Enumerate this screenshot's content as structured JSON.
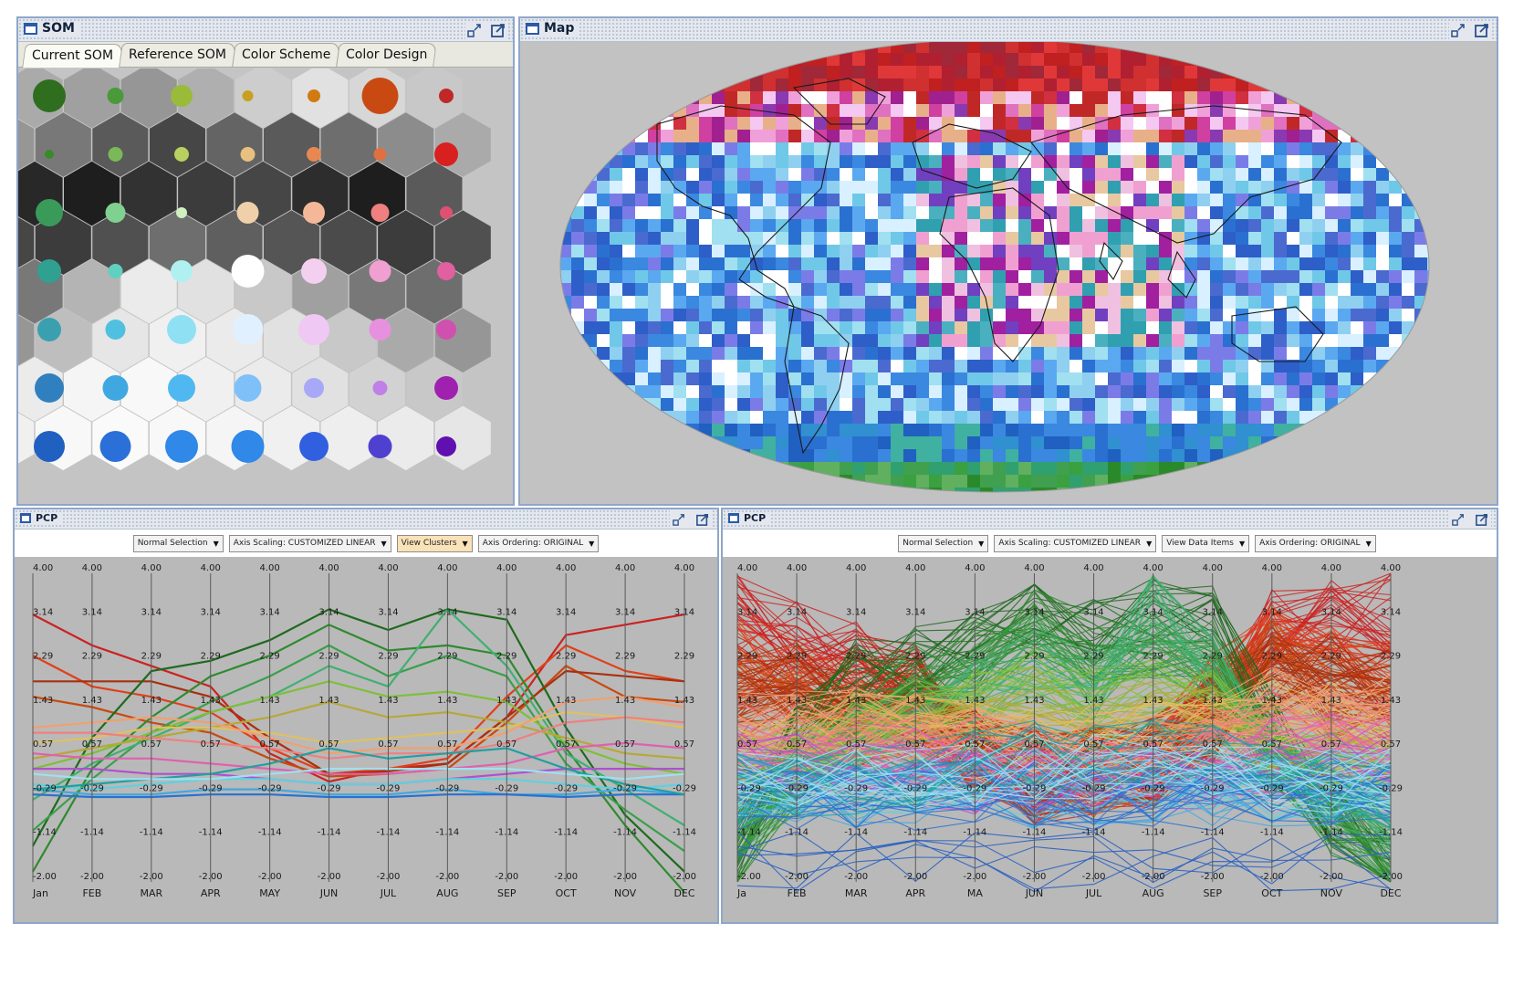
{
  "som_panel": {
    "title": "SOM",
    "tabs": [
      "Current SOM",
      "Reference SOM",
      "Color Scheme",
      "Color Design"
    ],
    "active_tab": "Current SOM"
  },
  "map_panel": {
    "title": "Map"
  },
  "pcp_left": {
    "title": "PCP",
    "controls": {
      "selection": "Normal Selection",
      "scaling": "Axis Scaling: CUSTOMIZED LINEAR",
      "view": "View Clusters",
      "ordering": "Axis Ordering: ORIGINAL"
    }
  },
  "pcp_right": {
    "title": "PCP",
    "controls": {
      "selection": "Normal Selection",
      "scaling": "Axis Scaling: CUSTOMIZED LINEAR",
      "view": "View Data Items",
      "ordering": "Axis Ordering: ORIGINAL"
    }
  },
  "pcp_axes": {
    "months_left": [
      "Jan",
      "FEB",
      "MAR",
      "APR",
      "MAY",
      "JUN",
      "JUL",
      "AUG",
      "SEP",
      "OCT",
      "NOV",
      "DEC"
    ],
    "months_right": [
      "Ja",
      "FEB",
      "MAR",
      "APR",
      "MA",
      "JUN",
      "JUL",
      "AUG",
      "SEP",
      "OCT",
      "NOV",
      "DEC"
    ],
    "ticks": [
      "4.00",
      "3.14",
      "2.29",
      "1.43",
      "0.57",
      "-0.29",
      "-1.14",
      "-2.00"
    ],
    "tick_values": [
      4.0,
      3.14,
      2.29,
      1.43,
      0.57,
      -0.29,
      -1.14,
      -2.0
    ],
    "range": [
      -2.0,
      4.0
    ]
  },
  "cluster_lines": [
    {
      "color": "#cc2222",
      "values": [
        3.2,
        2.6,
        2.2,
        1.8,
        0.5,
        -0.05,
        0.2,
        0.3,
        1.2,
        2.8,
        3.0,
        3.2
      ]
    },
    {
      "color": "#e0401a",
      "values": [
        2.4,
        1.8,
        1.6,
        1.3,
        0.6,
        0.1,
        0.2,
        0.4,
        1.6,
        2.6,
        2.1,
        1.9
      ]
    },
    {
      "color": "#c84a10",
      "values": [
        1.6,
        1.4,
        1.1,
        0.9,
        0.4,
        0.05,
        0.1,
        0.2,
        1.1,
        2.2,
        1.6,
        1.5
      ]
    },
    {
      "color": "#a83010",
      "values": [
        1.9,
        1.9,
        1.9,
        1.6,
        0.8,
        0.1,
        0.15,
        0.3,
        1.2,
        2.1,
        2.0,
        1.9
      ]
    },
    {
      "color": "#1e6a1e",
      "values": [
        -1.3,
        0.8,
        2.1,
        2.3,
        2.7,
        3.3,
        2.9,
        3.3,
        3.1,
        1.0,
        -0.7,
        -1.8
      ]
    },
    {
      "color": "#2f8a2f",
      "values": [
        -1.8,
        0.2,
        1.2,
        2.0,
        2.4,
        3.0,
        2.5,
        2.6,
        2.4,
        0.6,
        -0.9,
        -2.2
      ]
    },
    {
      "color": "#3aa04a",
      "values": [
        -1.0,
        0.0,
        0.9,
        1.5,
        2.0,
        2.6,
        2.0,
        2.4,
        2.0,
        0.3,
        -0.6,
        -1.4
      ]
    },
    {
      "color": "#40b070",
      "values": [
        -0.4,
        0.3,
        0.8,
        1.3,
        1.6,
        2.2,
        1.8,
        3.3,
        2.2,
        0.5,
        -0.2,
        -0.9
      ]
    },
    {
      "color": "#7fbf3a",
      "values": [
        0.2,
        0.5,
        0.9,
        1.3,
        1.6,
        1.9,
        1.6,
        1.7,
        1.5,
        0.7,
        0.3,
        0.1
      ]
    },
    {
      "color": "#b6a838",
      "values": [
        0.4,
        0.6,
        0.8,
        1.0,
        1.2,
        1.5,
        1.2,
        1.3,
        1.1,
        0.8,
        0.5,
        0.4
      ]
    },
    {
      "color": "#e0c060",
      "values": [
        0.7,
        0.8,
        1.0,
        1.0,
        0.9,
        0.7,
        0.8,
        0.9,
        1.0,
        1.3,
        1.2,
        1.0
      ]
    },
    {
      "color": "#f0a070",
      "values": [
        1.0,
        1.1,
        1.2,
        1.1,
        0.8,
        0.5,
        0.6,
        0.6,
        0.9,
        1.5,
        1.6,
        1.4
      ]
    },
    {
      "color": "#f08080",
      "values": [
        0.9,
        0.9,
        0.8,
        0.7,
        0.6,
        0.4,
        0.5,
        0.5,
        0.7,
        1.1,
        1.2,
        1.1
      ]
    },
    {
      "color": "#e060b0",
      "values": [
        0.5,
        0.4,
        0.4,
        0.3,
        0.2,
        0.1,
        0.1,
        0.2,
        0.3,
        0.6,
        0.7,
        0.6
      ]
    },
    {
      "color": "#b050d0",
      "values": [
        0.2,
        0.2,
        0.1,
        0.1,
        0.0,
        -0.1,
        -0.1,
        0.0,
        0.1,
        0.2,
        0.2,
        0.2
      ]
    },
    {
      "color": "#60d0e0",
      "values": [
        -0.1,
        -0.2,
        -0.1,
        0.0,
        0.0,
        -0.1,
        -0.1,
        0.0,
        0.0,
        -0.1,
        -0.2,
        -0.1
      ]
    },
    {
      "color": "#40a8e0",
      "values": [
        -0.2,
        -0.3,
        -0.3,
        -0.2,
        -0.2,
        -0.3,
        -0.3,
        -0.2,
        -0.3,
        -0.3,
        -0.2,
        -0.3
      ]
    },
    {
      "color": "#2a70d0",
      "values": [
        -0.3,
        -0.35,
        -0.35,
        -0.3,
        -0.3,
        -0.35,
        -0.35,
        -0.3,
        -0.3,
        -0.35,
        -0.3,
        -0.3
      ]
    },
    {
      "color": "#20a0a0",
      "values": [
        -0.2,
        -0.1,
        0.0,
        0.1,
        0.3,
        0.6,
        0.4,
        0.5,
        0.6,
        0.2,
        -0.1,
        -0.3
      ]
    },
    {
      "color": "#a0e0f0",
      "values": [
        0.1,
        0.0,
        0.0,
        0.0,
        0.1,
        0.2,
        0.2,
        0.2,
        0.2,
        0.1,
        0.0,
        0.1
      ]
    }
  ]
}
